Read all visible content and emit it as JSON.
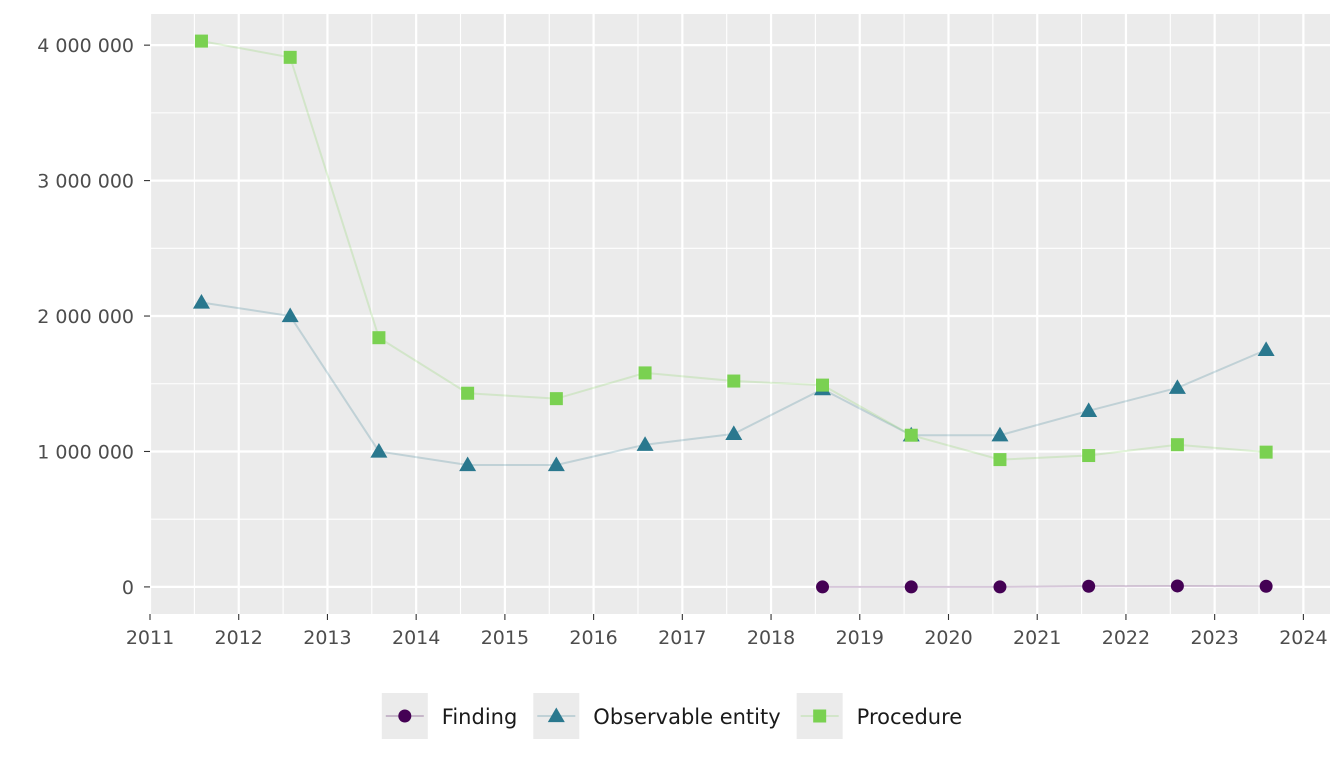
{
  "chart_data": {
    "type": "line",
    "title": "",
    "xlabel": "",
    "ylabel": "",
    "xlim": [
      2011,
      2024.3
    ],
    "ylim": [
      -200000,
      4230000
    ],
    "x_ticks": [
      2011,
      2012,
      2013,
      2014,
      2015,
      2016,
      2017,
      2018,
      2019,
      2020,
      2021,
      2022,
      2023,
      2024
    ],
    "x_tick_labels": [
      "2011",
      "2012",
      "2013",
      "2014",
      "2015",
      "2016",
      "2017",
      "2018",
      "2019",
      "2020",
      "2021",
      "2022",
      "2023",
      "2024"
    ],
    "y_ticks": [
      0,
      1000000,
      2000000,
      3000000,
      4000000
    ],
    "y_tick_labels": [
      "0",
      "1 000 000",
      "2 000 000",
      "3 000 000",
      "4 000 000"
    ],
    "grid": true,
    "legend_position": "bottom",
    "series": [
      {
        "name": "Finding",
        "color": "#440154",
        "marker": "circle",
        "x": [
          2018.58,
          2019.58,
          2020.58,
          2021.58,
          2022.58,
          2023.58
        ],
        "values": [
          0,
          0,
          0,
          5000,
          7000,
          5000
        ]
      },
      {
        "name": "Observable entity",
        "color": "#2a788e",
        "marker": "triangle",
        "x": [
          2011.58,
          2012.58,
          2013.58,
          2014.58,
          2015.58,
          2016.58,
          2017.58,
          2018.58,
          2019.58,
          2020.58,
          2021.58,
          2022.58,
          2023.58
        ],
        "values": [
          2100000,
          2000000,
          1000000,
          900000,
          900000,
          1050000,
          1130000,
          1460000,
          1120000,
          1120000,
          1300000,
          1470000,
          1750000
        ]
      },
      {
        "name": "Procedure",
        "color": "#7ad151",
        "marker": "square",
        "x": [
          2011.58,
          2012.58,
          2013.58,
          2014.58,
          2015.58,
          2016.58,
          2017.58,
          2018.58,
          2019.58,
          2020.58,
          2021.58,
          2022.58,
          2023.58
        ],
        "values": [
          4030000,
          3910000,
          1840000,
          1430000,
          1390000,
          1580000,
          1520000,
          1490000,
          1120000,
          940000,
          970000,
          1050000,
          995000
        ]
      }
    ]
  }
}
